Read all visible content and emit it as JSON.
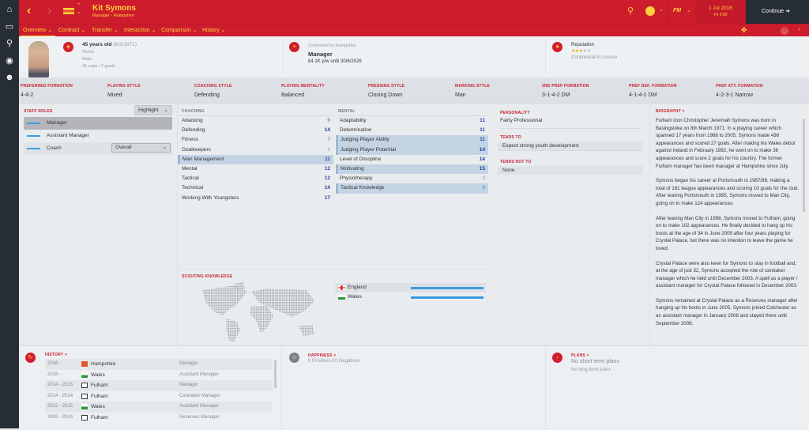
{
  "sidebar": {
    "items": [
      "home-icon",
      "inbox-icon",
      "search-icon",
      "scouting-icon",
      "staff-icon"
    ]
  },
  "header": {
    "name": "Kit Symons",
    "subtitle": "Manager - Hampshire",
    "date": "1 Jul 2016",
    "time": "Fri 0:00",
    "continue": "Continue",
    "fm": "FM"
  },
  "tabs": [
    "Overview",
    "Contract",
    "Transfer",
    "Interaction",
    "Comparison",
    "History"
  ],
  "profile": {
    "age": "45 years old",
    "dob": "(8/3/1971)",
    "nationality": "Welsh",
    "gender": "Male",
    "caps": "36 caps / 2 goals",
    "contract_label": "Contracted to Hampshire",
    "role": "Manager",
    "wage": "£4.1K p/w until 30/6/2026",
    "reputation_label": "Reputation",
    "reputation_stars": 2.5,
    "reputation_max": 5,
    "licence": "Continental B Licence"
  },
  "styles": [
    {
      "label": "Preferred Formation",
      "value": "4-4-2"
    },
    {
      "label": "Playing Style",
      "value": "Mixed"
    },
    {
      "label": "Coaching Style",
      "value": "Defending"
    },
    {
      "label": "Playing Mentality",
      "value": "Balanced"
    },
    {
      "label": "Pressing Style",
      "value": "Closing Down"
    },
    {
      "label": "Marking Style",
      "value": "Man"
    },
    {
      "label": "2nd Pref Formation",
      "value": "3-1-4-2 DM"
    },
    {
      "label": "Pref Def. Formation",
      "value": "4-1-4-1 DM"
    },
    {
      "label": "Pref Att. Formation",
      "value": "4-2-3-1 Narrow"
    }
  ],
  "staff_roles": {
    "title": "Staff Roles",
    "highlight": "Highlight",
    "items": [
      "Manager",
      "Assistant Manager",
      "Coach"
    ],
    "coach_select": "Overall"
  },
  "coaching": {
    "title": "Coaching",
    "rows": [
      {
        "name": "Attacking",
        "value": 9,
        "hl": false
      },
      {
        "name": "Defending",
        "value": 14,
        "hl": false
      },
      {
        "name": "Fitness",
        "value": 7,
        "hl": false
      },
      {
        "name": "Goalkeepers",
        "value": 1,
        "hl": false
      },
      {
        "name": "Man Management",
        "value": 11,
        "hl": true
      },
      {
        "name": "Mental",
        "value": 12,
        "hl": false
      },
      {
        "name": "Tactical",
        "value": 12,
        "hl": false
      },
      {
        "name": "Technical",
        "value": 14,
        "hl": false
      },
      {
        "name": "Working With Youngsters",
        "value": 17,
        "hl": false
      }
    ]
  },
  "mental": {
    "title": "Mental",
    "rows": [
      {
        "name": "Adaptability",
        "value": 11,
        "hl": false
      },
      {
        "name": "Determination",
        "value": 11,
        "hl": false
      },
      {
        "name": "Judging Player Ability",
        "value": 11,
        "hl": true
      },
      {
        "name": "Judging Player Potential",
        "value": 14,
        "hl": true
      },
      {
        "name": "Level of Discipline",
        "value": 14,
        "hl": false
      },
      {
        "name": "Motivating",
        "value": 15,
        "hl": true
      },
      {
        "name": "Physiotherapy",
        "value": 3,
        "hl": false
      },
      {
        "name": "Tactical Knowledge",
        "value": 8,
        "hl": true
      }
    ]
  },
  "personality": {
    "label": "Personality",
    "value": "Fairly Professional",
    "tends_to_label": "Tends To",
    "tends_to": "Expect strong youth development",
    "tends_not_label": "Tends Not To",
    "tends_not": "None"
  },
  "scouting": {
    "title": "Scouting Knowledge",
    "countries": [
      {
        "name": "England",
        "level": 1.0
      },
      {
        "name": "Wales",
        "level": 1.0
      }
    ]
  },
  "biography": {
    "title": "Biography >",
    "paragraphs": [
      "Fulham icon Christopher Jeremiah Symons was born in Basingstoke on 8th March 1971. In a playing career which spanned 17 years from 1988 to 2005, Symons made 436 appearances and scored 27 goals. After making his Wales debut against Ireland in February 1992, he went on to make 36 appearances and score 2 goals for his country. The former Fulham manager has been manager at Hampshire since July.",
      "Symons began his career at Portsmouth in 1987/88, making a total of 161 league appearances and scoring 10 goals for the club. After leaving Portsmouth in 1995, Symons moved to Man City, going on to make 124 appearances.",
      "After leaving Man City in 1998, Symons moved to Fulham, going on to make 102 appearances. He finally decided to hang up his boots at the age of 34 in June 2005 after four years playing for Crystal Palace, but there was no intention to leave the game he loved.",
      "Crystal Palace were also keen for Symons to stay in football and, at the age of just 32, Symons accepted the role of caretaker manager which he held until December 2003. A spell as a player / assistant manager for Crystal Palace followed in December 2003.",
      "Symons remained at Crystal Palace as a Reserves manager after hanging up his boots in June 2005. Symons joined Colchester as an assistant manager in January 2008 and stayed there until September 2008."
    ]
  },
  "history": {
    "title": "History >",
    "rows": [
      {
        "years": "2016 -",
        "club": "Hampshire",
        "role": "Manager"
      },
      {
        "years": "2016 -",
        "club": "Wales",
        "role": "Assistant Manager"
      },
      {
        "years": "2014 - 2015",
        "club": "Fulham",
        "role": "Manager"
      },
      {
        "years": "2014 - 2014",
        "club": "Fulham",
        "role": "Caretaker Manager"
      },
      {
        "years": "2012 - 2015",
        "club": "Wales",
        "role": "Assistant Manager"
      },
      {
        "years": "2009 - 2014",
        "club": "Fulham",
        "role": "Reserves Manager"
      }
    ]
  },
  "happiness": {
    "title": "Happiness >",
    "positives": "0 Positives",
    "sep": "/",
    "negatives": "0 Negatives"
  },
  "plans": {
    "title": "Plans >",
    "short": "No short term plans",
    "long": "No long term plans"
  },
  "colors": {
    "brand_red": "#cd1c2c",
    "accent_yellow": "#ffd23c",
    "sidebar": "#262d34",
    "bar_blue": "#3d9be0"
  }
}
